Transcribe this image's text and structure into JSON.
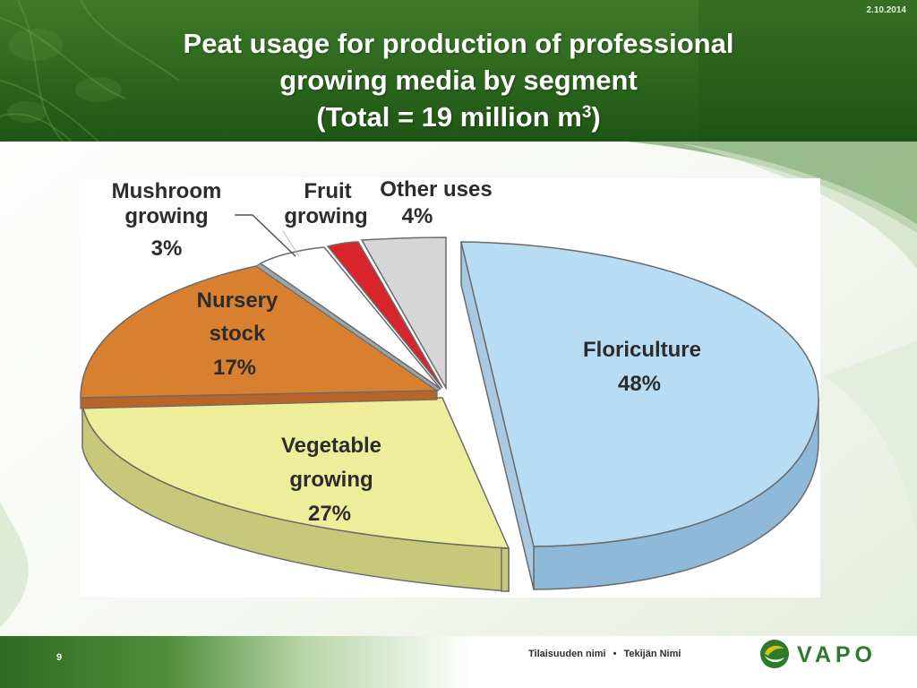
{
  "slide": {
    "date": "2.10.2014",
    "title_line1": "Peat usage for production of professional",
    "title_line2": "growing media by segment",
    "title_line3_prefix": "(Total = 19 million m",
    "title_line3_sup": "3",
    "title_line3_suffix": ")",
    "page_number": "9",
    "footer_event": "Tilaisuuden nimi",
    "footer_separator": "•",
    "footer_author": "Tekijän Nimi",
    "logo_text": "VAPO",
    "colors": {
      "header_green": "#2f6a1f",
      "logo_green": "#2e7a2b",
      "logo_yellow": "#d8c21a"
    }
  },
  "chart_data": {
    "type": "pie",
    "style": "3d-exploded",
    "total": "19 million m3",
    "slices": [
      {
        "label_lines": [
          "Floriculture"
        ],
        "value_label": "48%",
        "value": 48,
        "color": "#b8dcf4"
      },
      {
        "label_lines": [
          "Vegetable",
          "growing"
        ],
        "value_label": "27%",
        "value": 27,
        "color": "#eded9a"
      },
      {
        "label_lines": [
          "Nursery",
          "stock"
        ],
        "value_label": "17%",
        "value": 17,
        "color": "#d98030"
      },
      {
        "label_lines": [
          "Mushroom",
          "growing"
        ],
        "value_label": "3%",
        "value": 3,
        "color": "#ffffff"
      },
      {
        "label_lines": [
          "Fruit",
          "growing"
        ],
        "value_label": "",
        "value": 1.5,
        "color": "#d8242a"
      },
      {
        "label_lines": [
          "Other uses"
        ],
        "value_label": "4%",
        "value": 4,
        "color": "#d6d6d6"
      }
    ]
  }
}
